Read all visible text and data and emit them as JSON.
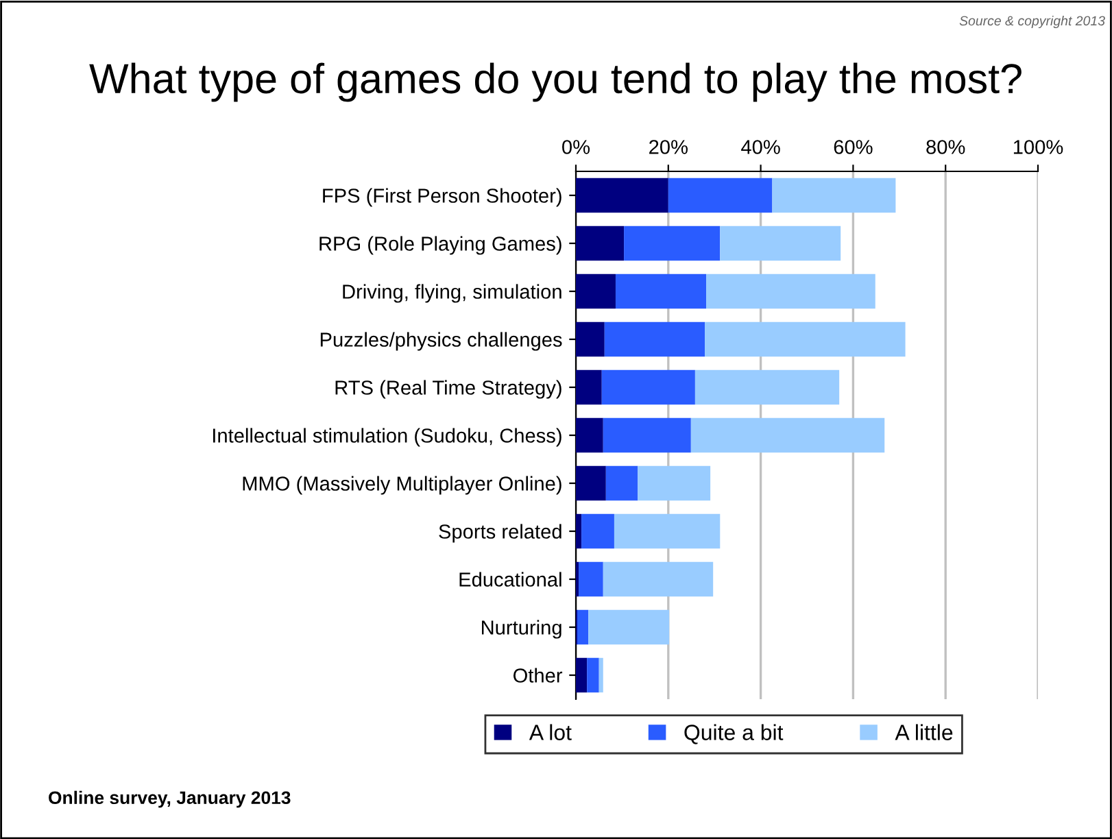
{
  "chart_data": {
    "type": "bar",
    "orientation": "horizontal",
    "stacked": true,
    "title": "What type of games do you tend to play the most?",
    "categories": [
      "FPS (First Person Shooter)",
      "RPG (Role Playing Games)",
      "Driving, flying, simulation",
      "Puzzles/physics challenges",
      "RTS (Real Time Strategy)",
      "Intellectual stimulation (Sudoku, Chess)",
      "MMO (Massively Multiplayer Online)",
      "Sports related",
      "Educational",
      "Nurturing",
      "Other"
    ],
    "series": [
      {
        "name": "A lot",
        "color": "#000080",
        "values": [
          20,
          10.4,
          8.6,
          6.2,
          5.6,
          5.9,
          6.5,
          1.2,
          0.6,
          0.3,
          2.4
        ]
      },
      {
        "name": "Quite a bit",
        "color": "#2a5cff",
        "values": [
          22.5,
          20.8,
          19.6,
          21.7,
          20.2,
          19.0,
          6.9,
          7.1,
          5.3,
          2.4,
          2.6
        ]
      },
      {
        "name": "A little",
        "color": "#99ccff",
        "values": [
          26.7,
          26.1,
          36.6,
          43.4,
          31.2,
          41.9,
          15.7,
          22.9,
          23.8,
          17.5,
          0.9
        ]
      }
    ],
    "xlim": [
      0,
      100
    ],
    "xticks": [
      {
        "value": 0,
        "label": "0%"
      },
      {
        "value": 20,
        "label": "20%"
      },
      {
        "value": 40,
        "label": "40%"
      },
      {
        "value": 60,
        "label": "60%"
      },
      {
        "value": 80,
        "label": "80%"
      },
      {
        "value": 100,
        "label": "100%"
      }
    ],
    "grid": "x",
    "legend": "bottom",
    "annotations": [
      "Source & copyright 2013",
      "Online survey, January 2013"
    ]
  }
}
